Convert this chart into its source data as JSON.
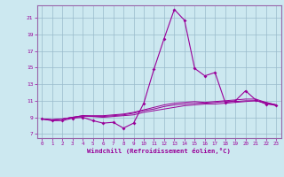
{
  "x_values": [
    0,
    1,
    2,
    3,
    4,
    5,
    6,
    7,
    8,
    9,
    10,
    11,
    12,
    13,
    14,
    15,
    16,
    17,
    18,
    19,
    20,
    21,
    22,
    23
  ],
  "line1": [
    8.8,
    8.6,
    8.6,
    8.9,
    9.0,
    8.6,
    8.3,
    8.4,
    7.7,
    8.3,
    10.7,
    14.8,
    18.5,
    22.0,
    20.7,
    14.9,
    14.0,
    14.4,
    10.8,
    11.0,
    12.2,
    11.1,
    10.6,
    10.5
  ],
  "line2": [
    8.8,
    8.7,
    8.8,
    9.0,
    9.2,
    9.1,
    9.0,
    9.1,
    9.2,
    9.3,
    9.6,
    9.8,
    10.0,
    10.2,
    10.4,
    10.5,
    10.6,
    10.6,
    10.7,
    10.8,
    10.9,
    11.0,
    10.8,
    10.5
  ],
  "line3": [
    8.8,
    8.7,
    8.8,
    9.0,
    9.1,
    9.1,
    9.1,
    9.2,
    9.3,
    9.5,
    9.8,
    10.0,
    10.3,
    10.5,
    10.6,
    10.7,
    10.7,
    10.8,
    10.9,
    10.9,
    11.0,
    11.0,
    10.7,
    10.4
  ],
  "line4": [
    8.8,
    8.7,
    8.8,
    9.0,
    9.2,
    9.2,
    9.2,
    9.3,
    9.4,
    9.6,
    9.9,
    10.2,
    10.5,
    10.7,
    10.8,
    10.9,
    10.8,
    10.9,
    11.0,
    11.1,
    11.2,
    11.2,
    10.8,
    10.5
  ],
  "bg_color": "#cce8f0",
  "line_color": "#990099",
  "grid_color": "#99bbcc",
  "border_color": "#9966aa",
  "xlabel": "Windchill (Refroidissement éolien,°C)",
  "yticks": [
    7,
    9,
    11,
    13,
    15,
    17,
    19,
    21
  ],
  "ylim": [
    6.5,
    22.5
  ],
  "xlim": [
    -0.5,
    23.5
  ]
}
